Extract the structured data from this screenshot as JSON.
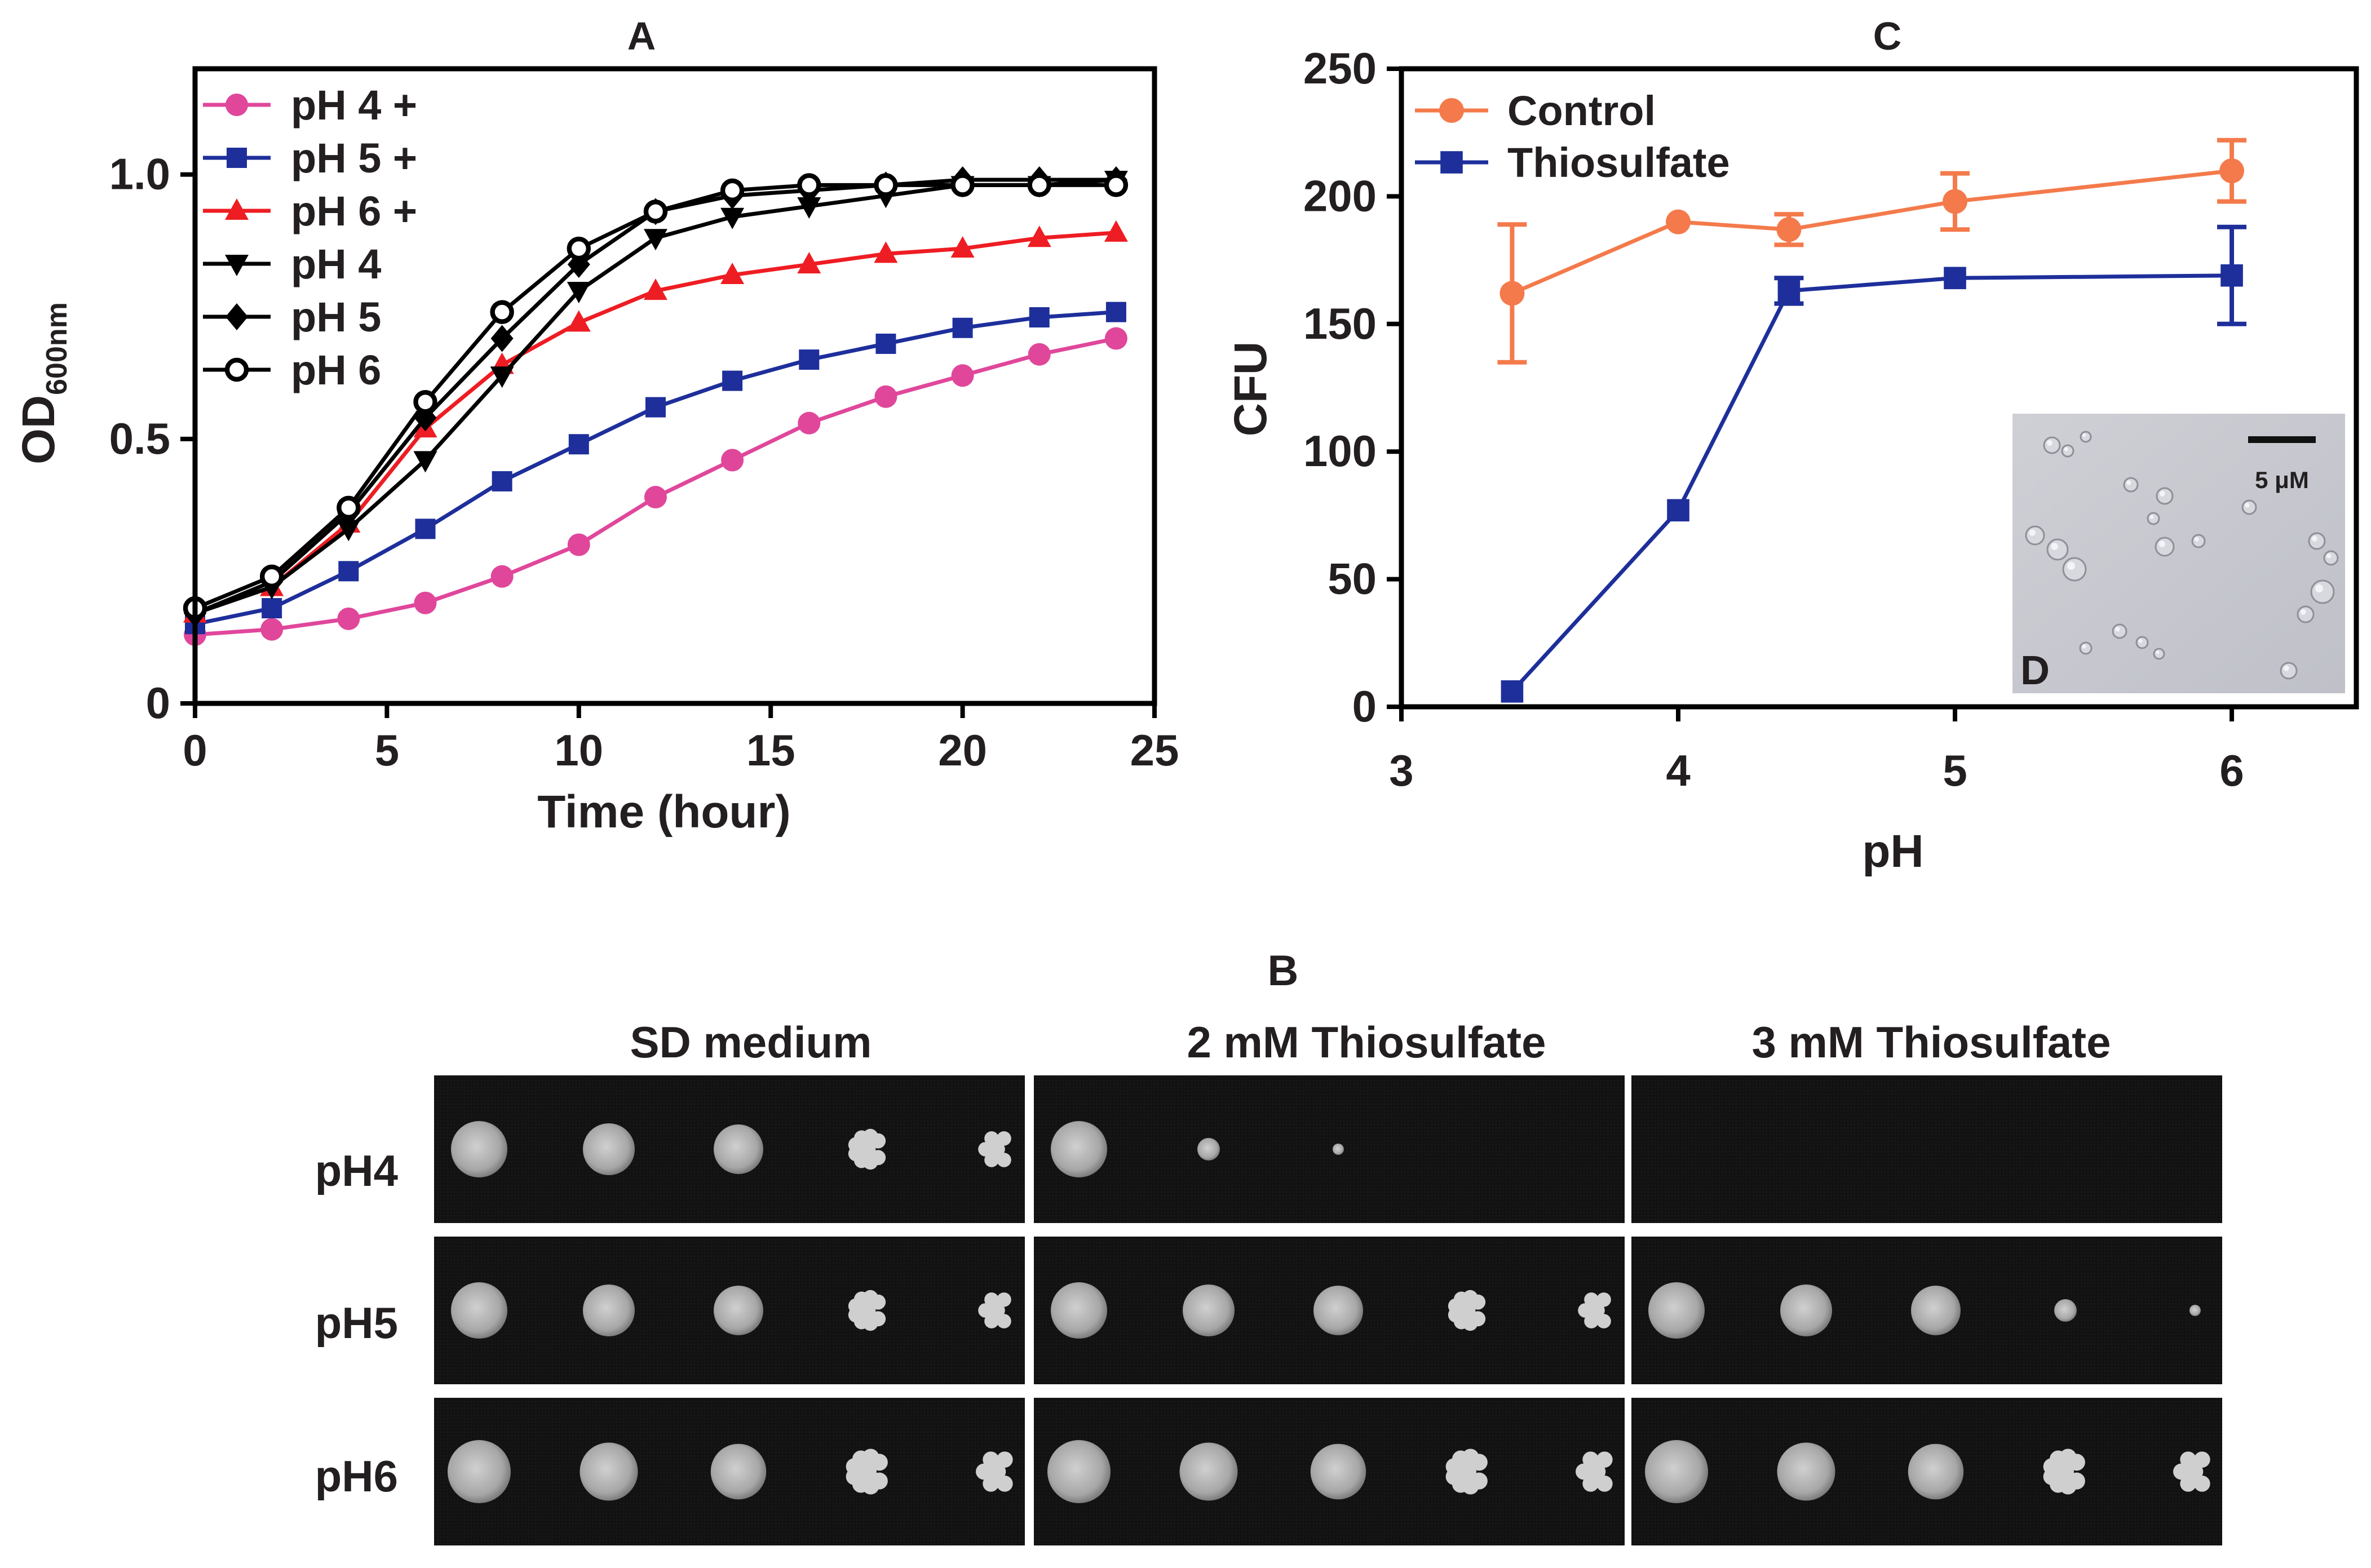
{
  "panel_b": {
    "label": "B",
    "columns": [
      "SD medium",
      "2 mM Thiosulfate",
      "3 mM Thiosulfate"
    ],
    "rows": [
      "pH4",
      "pH5",
      "pH6"
    ],
    "spots": [
      [
        [
          5,
          5,
          5,
          5,
          5
        ],
        [
          5,
          2,
          1,
          0,
          0
        ],
        [
          0,
          0,
          0,
          0,
          0
        ]
      ],
      [
        [
          5,
          5,
          5,
          5,
          5
        ],
        [
          5,
          5,
          5,
          5,
          5
        ],
        [
          5,
          5,
          5,
          2,
          1
        ]
      ],
      [
        [
          5,
          5,
          5,
          5,
          5
        ],
        [
          5,
          5,
          5,
          5,
          5
        ],
        [
          5,
          5,
          5,
          5,
          5
        ]
      ]
    ]
  },
  "inset_d": {
    "label": "D",
    "scale_bar": "5 μM"
  },
  "chart_data": [
    {
      "type": "line",
      "title": "A",
      "xlabel": "Time (hour)",
      "ylabel": "OD",
      "ylabel_sub": "600nm",
      "xlim": [
        0,
        25
      ],
      "ylim": [
        0,
        1.2
      ],
      "xticks": [
        0,
        5,
        10,
        15,
        20,
        25
      ],
      "yticks": [
        0,
        0.5,
        1.0
      ],
      "xtick_labels": [
        "0",
        "5",
        "10",
        "15",
        "20",
        "25"
      ],
      "ytick_labels": [
        "0",
        "0.5",
        "1.0"
      ],
      "legend_position": "top-left",
      "x": [
        0,
        2,
        4,
        6,
        8,
        10,
        12,
        14,
        16,
        18,
        20,
        22,
        24
      ],
      "series": [
        {
          "name": "pH 4 +",
          "color": "#e0479b",
          "marker": "circle",
          "values": [
            0.13,
            0.14,
            0.16,
            0.19,
            0.24,
            0.3,
            0.39,
            0.46,
            0.53,
            0.58,
            0.62,
            0.66,
            0.69
          ]
        },
        {
          "name": "pH 5 +",
          "color": "#1e2f9b",
          "marker": "square",
          "values": [
            0.15,
            0.18,
            0.25,
            0.33,
            0.42,
            0.49,
            0.56,
            0.61,
            0.65,
            0.68,
            0.71,
            0.73,
            0.74
          ]
        },
        {
          "name": "pH 6 +",
          "color": "#ee1d23",
          "marker": "triangle-up",
          "values": [
            0.17,
            0.22,
            0.34,
            0.52,
            0.64,
            0.72,
            0.78,
            0.81,
            0.83,
            0.85,
            0.86,
            0.88,
            0.89
          ]
        },
        {
          "name": "pH 4",
          "color": "#000000",
          "marker": "triangle-down",
          "values": [
            0.17,
            0.22,
            0.33,
            0.46,
            0.62,
            0.78,
            0.88,
            0.92,
            0.94,
            0.96,
            0.98,
            0.98,
            0.99
          ]
        },
        {
          "name": "pH 5",
          "color": "#000000",
          "marker": "diamond",
          "values": [
            0.17,
            0.23,
            0.36,
            0.54,
            0.69,
            0.83,
            0.93,
            0.96,
            0.97,
            0.98,
            0.99,
            0.99,
            0.99
          ]
        },
        {
          "name": "pH 6",
          "color": "#000000",
          "marker": "open-circle",
          "values": [
            0.18,
            0.24,
            0.37,
            0.57,
            0.74,
            0.86,
            0.93,
            0.97,
            0.98,
            0.98,
            0.98,
            0.98,
            0.98
          ]
        }
      ]
    },
    {
      "type": "line",
      "title": "C",
      "xlabel": "pH",
      "ylabel": "CFU",
      "xlim": [
        3,
        6.45
      ],
      "ylim": [
        0,
        250
      ],
      "xticks": [
        3,
        4,
        5,
        6
      ],
      "yticks": [
        0,
        50,
        100,
        150,
        200,
        250
      ],
      "xtick_labels": [
        "3",
        "4",
        "5",
        "6"
      ],
      "ytick_labels": [
        "0",
        "50",
        "100",
        "150",
        "200",
        "250"
      ],
      "legend_position": "top-left",
      "series": [
        {
          "name": "Control",
          "color": "#f47a4b",
          "marker": "circle",
          "x": [
            3.4,
            4.0,
            4.4,
            5.0,
            6.0
          ],
          "values": [
            162,
            190,
            187,
            198,
            210
          ],
          "errors": [
            27,
            0,
            6,
            11,
            12
          ]
        },
        {
          "name": "Thiosulfate",
          "color": "#1e2f9b",
          "marker": "square",
          "x": [
            3.4,
            4.0,
            4.4,
            5.0,
            6.0
          ],
          "values": [
            6,
            77,
            163,
            168,
            169
          ],
          "errors": [
            0,
            0,
            5,
            0,
            19
          ]
        }
      ]
    }
  ]
}
